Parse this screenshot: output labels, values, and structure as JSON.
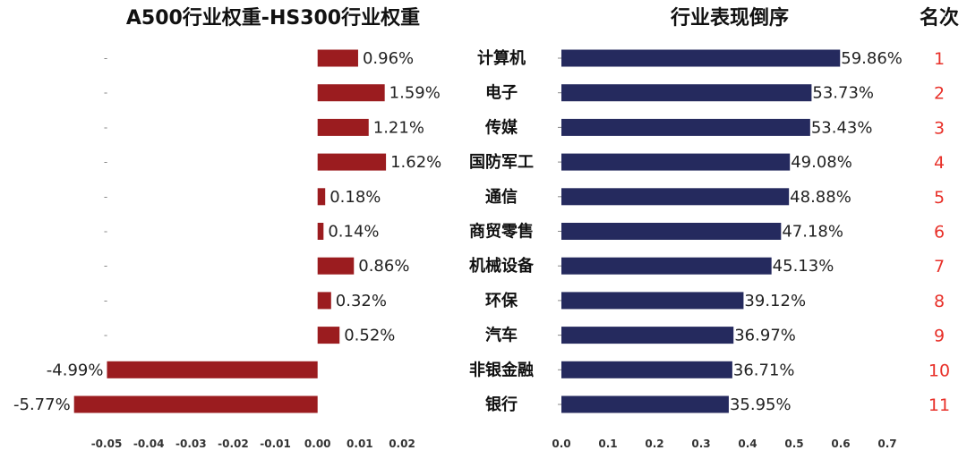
{
  "chart_data": [
    {
      "type": "bar",
      "orientation": "horizontal",
      "title": "A500行业权重-HS300行业权重",
      "categories": [
        "计算机",
        "电子",
        "传媒",
        "国防军工",
        "通信",
        "商贸零售",
        "机械设备",
        "环保",
        "汽车",
        "非银金融",
        "银行"
      ],
      "values": [
        0.0096,
        0.0159,
        0.0121,
        0.0162,
        0.0018,
        0.0014,
        0.0086,
        0.0032,
        0.0052,
        -0.0499,
        -0.0577
      ],
      "value_labels": [
        "0.96%",
        "1.59%",
        "1.21%",
        "1.62%",
        "0.18%",
        "0.14%",
        "0.86%",
        "0.32%",
        "0.52%",
        "-4.99%",
        "-5.77%"
      ],
      "left_placeholder": "-",
      "xlim": [
        -0.05,
        0.02
      ],
      "xticks": [
        "-0.05",
        "-0.04",
        "-0.03",
        "-0.02",
        "-0.01",
        "0.00",
        "0.01",
        "0.02"
      ],
      "color": "#9b1c1f",
      "grid": false
    },
    {
      "type": "bar",
      "orientation": "horizontal",
      "title": "行业表现倒序",
      "categories": [
        "计算机",
        "电子",
        "传媒",
        "国防军工",
        "通信",
        "商贸零售",
        "机械设备",
        "环保",
        "汽车",
        "非银金融",
        "银行"
      ],
      "values": [
        0.5986,
        0.5373,
        0.5343,
        0.4908,
        0.4888,
        0.4718,
        0.4513,
        0.3912,
        0.3697,
        0.3671,
        0.3595
      ],
      "value_labels": [
        "59.86%",
        "53.73%",
        "53.43%",
        "49.08%",
        "48.88%",
        "47.18%",
        "45.13%",
        "39.12%",
        "36.97%",
        "36.71%",
        "35.95%"
      ],
      "xlim": [
        0,
        0.7
      ],
      "xticks": [
        "0.0",
        "0.1",
        "0.2",
        "0.3",
        "0.4",
        "0.5",
        "0.6",
        "0.7"
      ],
      "color": "#252a5e",
      "grid": false
    }
  ],
  "rank_column": {
    "title": "名次",
    "values": [
      "1",
      "2",
      "3",
      "4",
      "5",
      "6",
      "7",
      "8",
      "9",
      "10",
      "11"
    ],
    "color": "#e8312a"
  }
}
